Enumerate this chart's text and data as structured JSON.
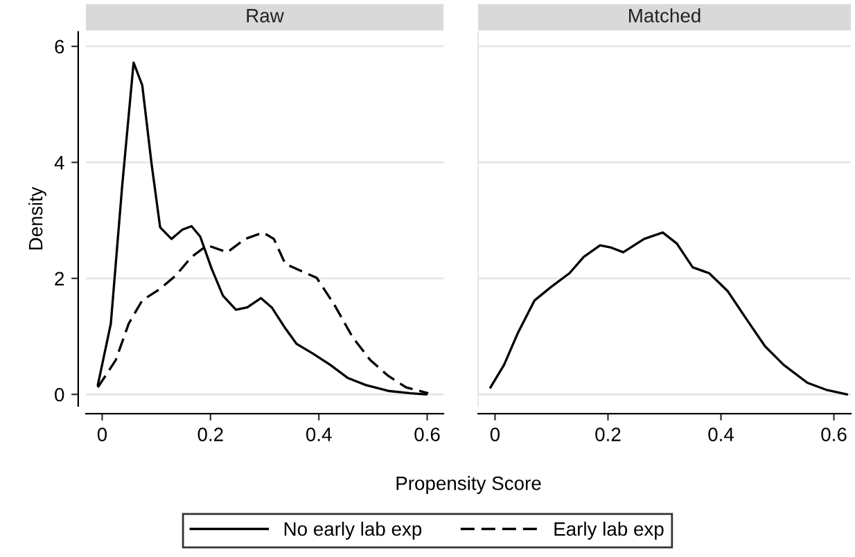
{
  "chart_data": [
    {
      "type": "line",
      "title": "Raw",
      "ylabel": "Density",
      "xlim": [
        -0.03,
        0.63
      ],
      "ylim": [
        -0.2,
        6.25
      ],
      "xticks": [
        0,
        0.2,
        0.4,
        0.6
      ],
      "yticks": [
        0,
        2,
        4,
        6
      ],
      "grid": "y",
      "legend": "bottom",
      "series": [
        {
          "name": "No early lab exp",
          "color": "#000000",
          "line_style": "solid",
          "x": [
            -0.008,
            0.016,
            0.037,
            0.058,
            0.074,
            0.091,
            0.107,
            0.128,
            0.148,
            0.165,
            0.181,
            0.202,
            0.223,
            0.247,
            0.268,
            0.293,
            0.313,
            0.338,
            0.359,
            0.388,
            0.421,
            0.454,
            0.487,
            0.528,
            0.569,
            0.598
          ],
          "values": [
            0.16,
            1.22,
            3.6,
            5.72,
            5.33,
            3.99,
            2.88,
            2.68,
            2.84,
            2.9,
            2.72,
            2.17,
            1.7,
            1.46,
            1.5,
            1.66,
            1.5,
            1.14,
            0.87,
            0.71,
            0.51,
            0.28,
            0.16,
            0.06,
            0.02,
            0.0
          ]
        },
        {
          "name": "Early lab exp",
          "color": "#000000",
          "line_style": "dashed",
          "x": [
            -0.008,
            0.025,
            0.049,
            0.074,
            0.107,
            0.136,
            0.165,
            0.194,
            0.231,
            0.264,
            0.297,
            0.317,
            0.338,
            0.367,
            0.396,
            0.429,
            0.462,
            0.495,
            0.528,
            0.561,
            0.602
          ],
          "values": [
            0.12,
            0.59,
            1.22,
            1.62,
            1.82,
            2.05,
            2.37,
            2.57,
            2.45,
            2.68,
            2.79,
            2.68,
            2.25,
            2.13,
            2.01,
            1.54,
            0.99,
            0.59,
            0.32,
            0.12,
            0.02
          ]
        }
      ]
    },
    {
      "type": "line",
      "title": "Matched",
      "xlabel": "Propensity Score",
      "xlim": [
        -0.03,
        0.63
      ],
      "ylim": [
        -0.2,
        6.25
      ],
      "xticks": [
        0,
        0.2,
        0.4,
        0.6
      ],
      "yticks": [
        0,
        2,
        4,
        6
      ],
      "grid": "y",
      "tick_labels": "x",
      "series": [
        {
          "color": "#000000",
          "line_style": "solid",
          "x": [
            -0.008,
            0.016,
            0.041,
            0.07,
            0.099,
            0.132,
            0.157,
            0.186,
            0.206,
            0.227,
            0.264,
            0.297,
            0.322,
            0.35,
            0.379,
            0.412,
            0.445,
            0.478,
            0.511,
            0.553,
            0.586,
            0.623
          ],
          "values": [
            0.12,
            0.51,
            1.07,
            1.62,
            1.85,
            2.09,
            2.37,
            2.57,
            2.53,
            2.45,
            2.68,
            2.79,
            2.6,
            2.19,
            2.09,
            1.78,
            1.3,
            0.83,
            0.51,
            0.2,
            0.08,
            0.0
          ]
        }
      ]
    }
  ]
}
